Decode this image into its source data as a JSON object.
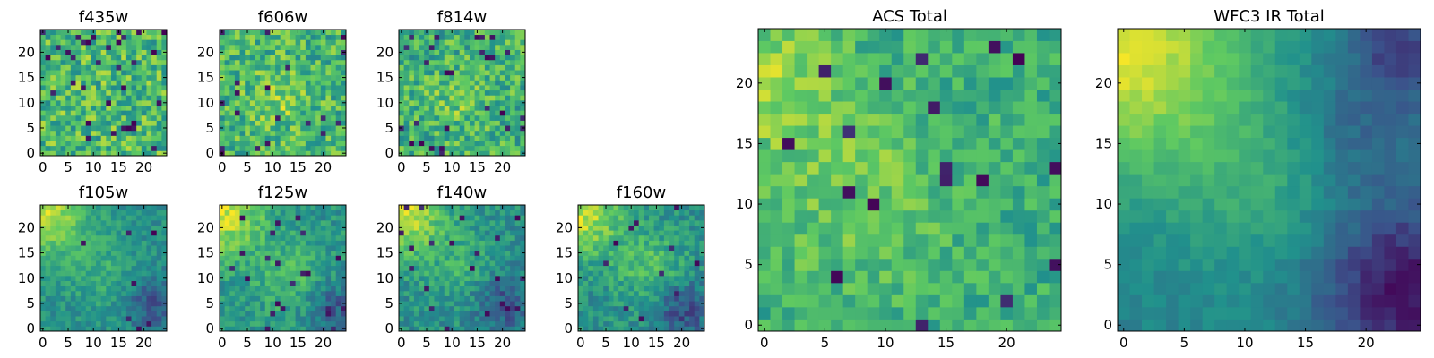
{
  "figure": {
    "colormap": "viridis",
    "colors": [
      "#440154",
      "#3b528b",
      "#21918c",
      "#5ec962",
      "#fde725"
    ]
  },
  "chart_data": [
    {
      "type": "heatmap",
      "title": "f435w",
      "grid_size": 25,
      "xlim": [
        0,
        24
      ],
      "ylim": [
        0,
        24
      ],
      "xticks": [
        0,
        5,
        10,
        15,
        20
      ],
      "yticks": [
        0,
        5,
        10,
        15,
        20
      ],
      "xtick_labels": [
        "0",
        "5",
        "10",
        "15",
        "20"
      ],
      "ytick_labels": [
        "0",
        "5",
        "10",
        "15",
        "20"
      ],
      "mean": 0.68,
      "noise": 0.22,
      "hot_spots": [],
      "cold_spots": [],
      "dark_outliers": 0.05
    },
    {
      "type": "heatmap",
      "title": "f606w",
      "grid_size": 25,
      "xlim": [
        0,
        24
      ],
      "ylim": [
        0,
        24
      ],
      "xticks": [
        0,
        5,
        10,
        15,
        20
      ],
      "yticks": [
        0,
        5,
        10,
        15,
        20
      ],
      "xtick_labels": [
        "0",
        "5",
        "10",
        "15",
        "20"
      ],
      "ytick_labels": [
        "0",
        "5",
        "10",
        "15",
        "20"
      ],
      "mean": 0.66,
      "noise": 0.2,
      "hot_spots": [
        {
          "x": 11,
          "y": 11,
          "r": 4,
          "amp": 0.15
        }
      ],
      "cold_spots": [],
      "dark_outliers": 0.04
    },
    {
      "type": "heatmap",
      "title": "f814w",
      "grid_size": 25,
      "xlim": [
        0,
        24
      ],
      "ylim": [
        0,
        24
      ],
      "xticks": [
        0,
        5,
        10,
        15,
        20
      ],
      "yticks": [
        0,
        5,
        10,
        15,
        20
      ],
      "xtick_labels": [
        "0",
        "5",
        "10",
        "15",
        "20"
      ],
      "ytick_labels": [
        "0",
        "5",
        "10",
        "15",
        "20"
      ],
      "mean": 0.64,
      "noise": 0.2,
      "hot_spots": [
        {
          "x": 11,
          "y": 11,
          "r": 4,
          "amp": 0.12
        }
      ],
      "cold_spots": [],
      "dark_outliers": 0.04
    },
    {
      "type": "heatmap",
      "title": "f105w",
      "grid_size": 25,
      "xlim": [
        0,
        24
      ],
      "ylim": [
        0,
        24
      ],
      "xticks": [
        0,
        5,
        10,
        15,
        20
      ],
      "yticks": [
        0,
        5,
        10,
        15,
        20
      ],
      "xtick_labels": [
        "0",
        "5",
        "10",
        "15",
        "20"
      ],
      "ytick_labels": [
        "0",
        "5",
        "10",
        "15",
        "20"
      ],
      "mean": 0.5,
      "noise": 0.1,
      "hot_spots": [
        {
          "x": 0,
          "y": 23,
          "r": 6,
          "amp": 0.4
        },
        {
          "x": 12,
          "y": 11,
          "r": 5,
          "amp": 0.12
        }
      ],
      "cold_spots": [
        {
          "x": 22,
          "y": 5,
          "r": 4,
          "amp": 0.25
        }
      ],
      "dark_outliers": 0.02
    },
    {
      "type": "heatmap",
      "title": "f125w",
      "grid_size": 25,
      "xlim": [
        0,
        24
      ],
      "ylim": [
        0,
        24
      ],
      "xticks": [
        0,
        5,
        10,
        15,
        20
      ],
      "yticks": [
        0,
        5,
        10,
        15,
        20
      ],
      "xtick_labels": [
        "0",
        "5",
        "10",
        "15",
        "20"
      ],
      "ytick_labels": [
        "0",
        "5",
        "10",
        "15",
        "20"
      ],
      "mean": 0.52,
      "noise": 0.12,
      "hot_spots": [
        {
          "x": 0,
          "y": 23,
          "r": 6,
          "amp": 0.4
        },
        {
          "x": 14,
          "y": 10,
          "r": 5,
          "amp": 0.18
        }
      ],
      "cold_spots": [
        {
          "x": 22,
          "y": 4,
          "r": 4,
          "amp": 0.25
        }
      ],
      "dark_outliers": 0.03
    },
    {
      "type": "heatmap",
      "title": "f140w",
      "grid_size": 25,
      "xlim": [
        0,
        24
      ],
      "ylim": [
        0,
        24
      ],
      "xticks": [
        0,
        5,
        10,
        15,
        20
      ],
      "yticks": [
        0,
        5,
        10,
        15,
        20
      ],
      "xtick_labels": [
        "0",
        "5",
        "10",
        "15",
        "20"
      ],
      "ytick_labels": [
        "0",
        "5",
        "10",
        "15",
        "20"
      ],
      "mean": 0.5,
      "noise": 0.12,
      "hot_spots": [
        {
          "x": 0,
          "y": 23,
          "r": 6,
          "amp": 0.42
        },
        {
          "x": 12,
          "y": 12,
          "r": 5,
          "amp": 0.12
        }
      ],
      "cold_spots": [
        {
          "x": 20,
          "y": 5,
          "r": 4,
          "amp": 0.25
        }
      ],
      "dark_outliers": 0.03
    },
    {
      "type": "heatmap",
      "title": "f160w",
      "grid_size": 25,
      "xlim": [
        0,
        24
      ],
      "ylim": [
        0,
        24
      ],
      "xticks": [
        0,
        5,
        10,
        15,
        20
      ],
      "yticks": [
        0,
        5,
        10,
        15,
        20
      ],
      "xtick_labels": [
        "0",
        "5",
        "10",
        "15",
        "20"
      ],
      "ytick_labels": [
        "0",
        "5",
        "10",
        "15",
        "20"
      ],
      "mean": 0.5,
      "noise": 0.12,
      "hot_spots": [
        {
          "x": 0,
          "y": 23,
          "r": 6,
          "amp": 0.4
        },
        {
          "x": 14,
          "y": 12,
          "r": 5,
          "amp": 0.2
        }
      ],
      "cold_spots": [
        {
          "x": 20,
          "y": 4,
          "r": 4,
          "amp": 0.28
        }
      ],
      "dark_outliers": 0.03
    },
    {
      "type": "heatmap",
      "title": "ACS Total",
      "grid_size": 25,
      "xlim": [
        0,
        24
      ],
      "ylim": [
        0,
        24
      ],
      "xticks": [
        0,
        5,
        10,
        15,
        20
      ],
      "yticks": [
        0,
        5,
        10,
        15,
        20
      ],
      "xtick_labels": [
        "0",
        "5",
        "10",
        "15",
        "20"
      ],
      "ytick_labels": [
        "0",
        "5",
        "10",
        "15",
        "20"
      ],
      "mean": 0.62,
      "noise": 0.13,
      "hot_spots": [
        {
          "x": 1,
          "y": 20,
          "r": 4,
          "amp": 0.2
        },
        {
          "x": 8,
          "y": 11,
          "r": 6,
          "amp": 0.14
        }
      ],
      "cold_spots": [],
      "dark_outliers": 0.04
    },
    {
      "type": "heatmap",
      "title": "WFC3 IR Total",
      "grid_size": 25,
      "xlim": [
        0,
        24
      ],
      "ylim": [
        0,
        24
      ],
      "xticks": [
        0,
        5,
        10,
        15,
        20
      ],
      "yticks": [
        0,
        5,
        10,
        15,
        20
      ],
      "xtick_labels": [
        "0",
        "5",
        "10",
        "15",
        "20"
      ],
      "ytick_labels": [
        "0",
        "5",
        "10",
        "15",
        "20"
      ],
      "mean": 0.45,
      "noise": 0.05,
      "hot_spots": [
        {
          "x": 0,
          "y": 23,
          "r": 7,
          "amp": 0.5
        },
        {
          "x": 12,
          "y": 12,
          "r": 6,
          "amp": 0.15
        }
      ],
      "cold_spots": [
        {
          "x": 23,
          "y": 3,
          "r": 5,
          "amp": 0.4
        },
        {
          "x": 23,
          "y": 23,
          "r": 3,
          "amp": 0.25
        },
        {
          "x": 19,
          "y": 16,
          "r": 4,
          "amp": 0.15
        }
      ],
      "dark_outliers": 0.0
    }
  ]
}
